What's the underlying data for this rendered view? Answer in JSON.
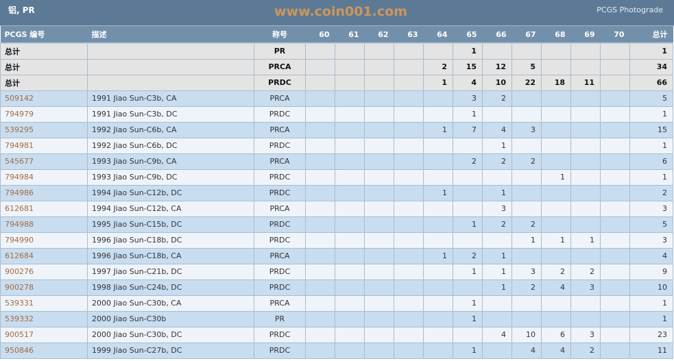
{
  "header": {
    "title": "铝, PR",
    "subtitle": "PCGS Photograde"
  },
  "columns": {
    "code": "PCGS 编号",
    "desc": "描述",
    "designation": "称号",
    "grades": [
      "60",
      "61",
      "62",
      "63",
      "64",
      "65",
      "66",
      "67",
      "68",
      "69",
      "70"
    ],
    "total": "总计"
  },
  "totals": [
    {
      "label": "总计",
      "designation": "PR",
      "grades": [
        "",
        "",
        "",
        "",
        "",
        "1",
        "",
        "",
        "",
        "",
        ""
      ],
      "total": "1"
    },
    {
      "label": "总计",
      "designation": "PRCA",
      "grades": [
        "",
        "",
        "",
        "",
        "2",
        "15",
        "12",
        "5",
        "",
        "",
        ""
      ],
      "total": "34"
    },
    {
      "label": "总计",
      "designation": "PRDC",
      "grades": [
        "",
        "",
        "",
        "",
        "1",
        "4",
        "10",
        "22",
        "18",
        "11",
        ""
      ],
      "total": "66"
    }
  ],
  "rows": [
    {
      "code": "509142",
      "desc": "1991 Jiao Sun-C3b, CA",
      "designation": "PRCA",
      "grades": [
        "",
        "",
        "",
        "",
        "",
        "3",
        "2",
        "",
        "",
        "",
        ""
      ],
      "total": "5"
    },
    {
      "code": "794979",
      "desc": "1991 Jiao Sun-C3b, DC",
      "designation": "PRDC",
      "grades": [
        "",
        "",
        "",
        "",
        "",
        "1",
        "",
        "",
        "",
        "",
        ""
      ],
      "total": "1"
    },
    {
      "code": "539295",
      "desc": "1992 Jiao Sun-C6b, CA",
      "designation": "PRCA",
      "grades": [
        "",
        "",
        "",
        "",
        "1",
        "7",
        "4",
        "3",
        "",
        "",
        ""
      ],
      "total": "15"
    },
    {
      "code": "794981",
      "desc": "1992 Jiao Sun-C6b, DC",
      "designation": "PRDC",
      "grades": [
        "",
        "",
        "",
        "",
        "",
        "",
        "1",
        "",
        "",
        "",
        ""
      ],
      "total": "1"
    },
    {
      "code": "545677",
      "desc": "1993 Jiao Sun-C9b, CA",
      "designation": "PRCA",
      "grades": [
        "",
        "",
        "",
        "",
        "",
        "2",
        "2",
        "2",
        "",
        "",
        ""
      ],
      "total": "6"
    },
    {
      "code": "794984",
      "desc": "1993 Jiao Sun-C9b, DC",
      "designation": "PRDC",
      "grades": [
        "",
        "",
        "",
        "",
        "",
        "",
        "",
        "",
        "1",
        "",
        ""
      ],
      "total": "1"
    },
    {
      "code": "794986",
      "desc": "1994 Jiao Sun-C12b, DC",
      "designation": "PRDC",
      "grades": [
        "",
        "",
        "",
        "",
        "1",
        "",
        "1",
        "",
        "",
        "",
        ""
      ],
      "total": "2"
    },
    {
      "code": "612681",
      "desc": "1994 Jiao Sun-C12b, CA",
      "designation": "PRCA",
      "grades": [
        "",
        "",
        "",
        "",
        "",
        "",
        "3",
        "",
        "",
        "",
        ""
      ],
      "total": "3"
    },
    {
      "code": "794988",
      "desc": "1995 Jiao Sun-C15b, DC",
      "designation": "PRDC",
      "grades": [
        "",
        "",
        "",
        "",
        "",
        "1",
        "2",
        "2",
        "",
        "",
        ""
      ],
      "total": "5"
    },
    {
      "code": "794990",
      "desc": "1996 Jiao Sun-C18b, DC",
      "designation": "PRDC",
      "grades": [
        "",
        "",
        "",
        "",
        "",
        "",
        "",
        "1",
        "1",
        "1",
        ""
      ],
      "total": "3"
    },
    {
      "code": "612684",
      "desc": "1996 Jiao Sun-C18b, CA",
      "designation": "PRCA",
      "grades": [
        "",
        "",
        "",
        "",
        "1",
        "2",
        "1",
        "",
        "",
        "",
        ""
      ],
      "total": "4"
    },
    {
      "code": "900276",
      "desc": "1997 Jiao Sun-C21b, DC",
      "designation": "PRDC",
      "grades": [
        "",
        "",
        "",
        "",
        "",
        "1",
        "1",
        "3",
        "2",
        "2",
        ""
      ],
      "total": "9"
    },
    {
      "code": "900278",
      "desc": "1998 Jiao Sun-C24b, DC",
      "designation": "PRDC",
      "grades": [
        "",
        "",
        "",
        "",
        "",
        "",
        "1",
        "2",
        "4",
        "3",
        ""
      ],
      "total": "10"
    },
    {
      "code": "539331",
      "desc": "2000 Jiao Sun-C30b, CA",
      "designation": "PRCA",
      "grades": [
        "",
        "",
        "",
        "",
        "",
        "1",
        "",
        "",
        "",
        "",
        ""
      ],
      "total": "1"
    },
    {
      "code": "539332",
      "desc": "2000 Jiao Sun-C30b",
      "designation": "PR",
      "grades": [
        "",
        "",
        "",
        "",
        "",
        "1",
        "",
        "",
        "",
        "",
        ""
      ],
      "total": "1"
    },
    {
      "code": "900517",
      "desc": "2000 Jiao Sun-C30b, DC",
      "designation": "PRDC",
      "grades": [
        "",
        "",
        "",
        "",
        "",
        "",
        "4",
        "10",
        "6",
        "3",
        ""
      ],
      "total": "23"
    },
    {
      "code": "950846",
      "desc": "1999 Jiao Sun-C27b, DC",
      "designation": "PRDC",
      "grades": [
        "",
        "",
        "",
        "",
        "",
        "1",
        "",
        "4",
        "4",
        "2",
        ""
      ],
      "total": "11"
    }
  ],
  "watermark": "www.coin001.com"
}
